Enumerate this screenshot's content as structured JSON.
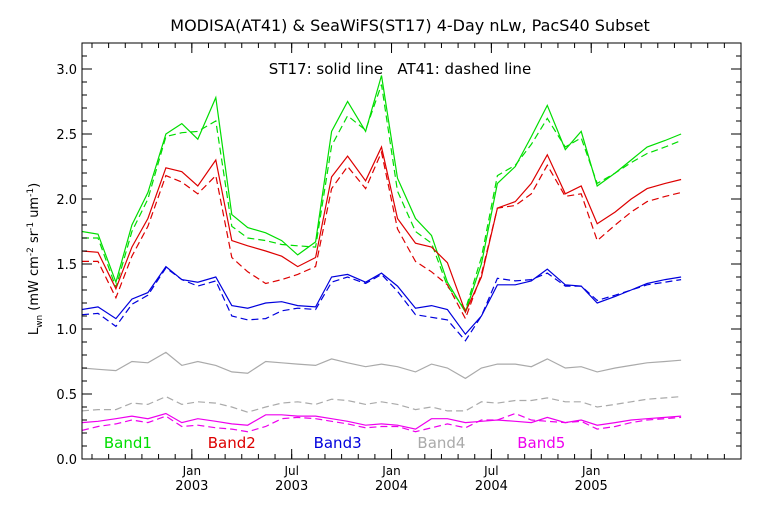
{
  "chart_data": {
    "type": "line",
    "title": "MODISA(AT41) & SeaWiFS(ST17) 4-Day nLw, PacS40 Subset",
    "annotation": "ST17: solid line   AT41: dashed line",
    "ylabel": "L_wn (mW cm^-2 sr^-1 um^-1)",
    "ylabel_parts": {
      "main": "L",
      "sub": "wn",
      "units_open": "(mW cm",
      "exp1": "-2",
      "mid1": " sr",
      "exp2": "-1",
      "mid2": " um",
      "exp3": "-1",
      "units_close": ")"
    },
    "ylim": [
      0.0,
      3.2
    ],
    "yticks": [
      0.0,
      0.5,
      1.0,
      1.5,
      2.0,
      2.5,
      3.0
    ],
    "ytick_labels": [
      "0.0",
      "0.5",
      "1.0",
      "1.5",
      "2.0",
      "2.5",
      "3.0"
    ],
    "xlim": [
      2002.45,
      2005.75
    ],
    "xticks": [
      {
        "x": 2003.0,
        "line1": "Jan",
        "line2": "2003"
      },
      {
        "x": 2003.5,
        "line1": "Jul",
        "line2": "2003"
      },
      {
        "x": 2004.0,
        "line1": "Jan",
        "line2": "2004"
      },
      {
        "x": 2004.5,
        "line1": "Jul",
        "line2": "2004"
      },
      {
        "x": 2005.0,
        "line1": "Jan",
        "line2": "2005"
      }
    ],
    "x": [
      2002.45,
      2002.53,
      2002.62,
      2002.7,
      2002.78,
      2002.87,
      2002.95,
      2003.03,
      2003.12,
      2003.2,
      2003.28,
      2003.37,
      2003.45,
      2003.53,
      2003.62,
      2003.7,
      2003.78,
      2003.87,
      2003.95,
      2004.03,
      2004.12,
      2004.2,
      2004.28,
      2004.37,
      2004.45,
      2004.53,
      2004.62,
      2004.7,
      2004.78,
      2004.87,
      2004.95,
      2005.03,
      2005.12,
      2005.2,
      2005.28,
      2005.37,
      2005.45
    ],
    "series": [
      {
        "name": "Band1",
        "color": "#00dd00",
        "solid": [
          1.75,
          1.73,
          1.36,
          1.8,
          2.05,
          2.5,
          2.58,
          2.46,
          2.78,
          1.88,
          1.78,
          1.74,
          1.68,
          1.57,
          1.67,
          2.52,
          2.75,
          2.52,
          2.95,
          2.16,
          1.85,
          1.72,
          1.36,
          1.13,
          1.5,
          2.12,
          2.25,
          2.48,
          2.72,
          2.38,
          2.52,
          2.1,
          2.2,
          2.3,
          2.4,
          2.45,
          2.5
        ],
        "dashed": [
          1.7,
          1.7,
          1.32,
          1.75,
          2.0,
          2.48,
          2.51,
          2.52,
          2.6,
          1.79,
          1.7,
          1.68,
          1.65,
          1.64,
          1.63,
          2.41,
          2.64,
          2.53,
          2.88,
          2.06,
          1.75,
          1.66,
          1.33,
          1.15,
          1.55,
          2.18,
          2.26,
          2.42,
          2.62,
          2.4,
          2.47,
          2.12,
          2.2,
          2.28,
          2.35,
          2.4,
          2.45
        ]
      },
      {
        "name": "Band2",
        "color": "#dd0000",
        "solid": [
          1.6,
          1.59,
          1.31,
          1.63,
          1.85,
          2.24,
          2.21,
          2.1,
          2.3,
          1.68,
          1.64,
          1.6,
          1.56,
          1.48,
          1.55,
          2.17,
          2.33,
          2.14,
          2.4,
          1.85,
          1.66,
          1.63,
          1.51,
          1.13,
          1.4,
          1.93,
          1.98,
          2.12,
          2.34,
          2.04,
          2.1,
          1.81,
          1.9,
          2.0,
          2.08,
          2.12,
          2.15
        ],
        "dashed": [
          1.52,
          1.52,
          1.24,
          1.56,
          1.79,
          2.18,
          2.13,
          2.04,
          2.18,
          1.55,
          1.44,
          1.35,
          1.38,
          1.42,
          1.48,
          2.08,
          2.25,
          2.08,
          2.36,
          1.77,
          1.52,
          1.44,
          1.34,
          1.08,
          1.42,
          1.93,
          1.95,
          2.04,
          2.26,
          2.02,
          2.04,
          1.68,
          1.8,
          1.9,
          1.98,
          2.02,
          2.05
        ]
      },
      {
        "name": "Band3",
        "color": "#0000dd",
        "solid": [
          1.15,
          1.17,
          1.08,
          1.23,
          1.28,
          1.48,
          1.38,
          1.36,
          1.4,
          1.18,
          1.16,
          1.2,
          1.21,
          1.18,
          1.17,
          1.4,
          1.42,
          1.36,
          1.43,
          1.33,
          1.16,
          1.18,
          1.15,
          0.96,
          1.1,
          1.34,
          1.34,
          1.37,
          1.46,
          1.34,
          1.33,
          1.2,
          1.25,
          1.3,
          1.35,
          1.38,
          1.4
        ],
        "dashed": [
          1.11,
          1.12,
          1.02,
          1.19,
          1.26,
          1.47,
          1.38,
          1.33,
          1.37,
          1.1,
          1.07,
          1.08,
          1.14,
          1.16,
          1.15,
          1.36,
          1.4,
          1.35,
          1.42,
          1.29,
          1.11,
          1.09,
          1.07,
          0.91,
          1.1,
          1.39,
          1.37,
          1.38,
          1.43,
          1.33,
          1.33,
          1.22,
          1.26,
          1.3,
          1.34,
          1.36,
          1.38
        ]
      },
      {
        "name": "Band4",
        "color": "#aaaaaa",
        "solid": [
          0.7,
          0.69,
          0.68,
          0.75,
          0.74,
          0.82,
          0.72,
          0.75,
          0.72,
          0.67,
          0.66,
          0.75,
          0.74,
          0.73,
          0.72,
          0.77,
          0.74,
          0.71,
          0.73,
          0.71,
          0.67,
          0.73,
          0.7,
          0.62,
          0.7,
          0.73,
          0.73,
          0.71,
          0.77,
          0.7,
          0.71,
          0.67,
          0.7,
          0.72,
          0.74,
          0.75,
          0.76
        ],
        "dashed": [
          0.37,
          0.38,
          0.38,
          0.43,
          0.42,
          0.48,
          0.42,
          0.44,
          0.43,
          0.4,
          0.36,
          0.4,
          0.43,
          0.44,
          0.42,
          0.46,
          0.45,
          0.42,
          0.44,
          0.42,
          0.38,
          0.4,
          0.37,
          0.37,
          0.44,
          0.43,
          0.45,
          0.45,
          0.47,
          0.44,
          0.44,
          0.4,
          0.42,
          0.44,
          0.46,
          0.47,
          0.48
        ]
      },
      {
        "name": "Band5",
        "color": "#ee00ee",
        "solid": [
          0.28,
          0.29,
          0.31,
          0.33,
          0.31,
          0.35,
          0.28,
          0.31,
          0.29,
          0.27,
          0.26,
          0.34,
          0.34,
          0.33,
          0.33,
          0.31,
          0.29,
          0.26,
          0.27,
          0.26,
          0.23,
          0.31,
          0.31,
          0.28,
          0.29,
          0.3,
          0.29,
          0.28,
          0.32,
          0.28,
          0.3,
          0.26,
          0.28,
          0.3,
          0.31,
          0.32,
          0.33
        ],
        "dashed": [
          0.22,
          0.25,
          0.27,
          0.3,
          0.28,
          0.33,
          0.25,
          0.26,
          0.24,
          0.23,
          0.21,
          0.25,
          0.31,
          0.32,
          0.31,
          0.29,
          0.27,
          0.24,
          0.25,
          0.25,
          0.21,
          0.24,
          0.27,
          0.24,
          0.3,
          0.3,
          0.35,
          0.3,
          0.29,
          0.28,
          0.29,
          0.23,
          0.25,
          0.28,
          0.3,
          0.31,
          0.32
        ]
      }
    ],
    "legend": [
      {
        "label": "Band1",
        "color": "#00dd00",
        "x": 2002.68
      },
      {
        "label": "Band2",
        "color": "#dd0000",
        "x": 2003.2
      },
      {
        "label": "Band3",
        "color": "#0000dd",
        "x": 2003.73
      },
      {
        "label": "Band4",
        "color": "#aaaaaa",
        "x": 2004.25
      },
      {
        "label": "Band5",
        "color": "#ee00ee",
        "x": 2004.75
      }
    ],
    "grid": false,
    "legend_placement": "bottom, inside plot"
  }
}
